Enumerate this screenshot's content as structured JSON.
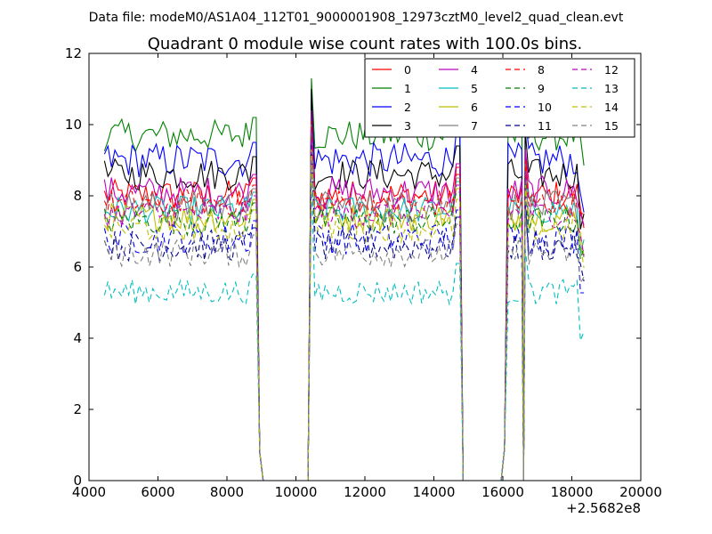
{
  "chart_data": {
    "type": "line",
    "suptitle": "Data file: modeM0/AS1A04_112T01_9000001908_12973cztM0_level2_quad_clean.evt",
    "title": "Quadrant 0 module wise count rates with 100.0s bins.",
    "xlabel": "",
    "ylabel": "",
    "x_offset_label": "+2.5682e8",
    "xlim": [
      4000,
      20000
    ],
    "ylim": [
      0,
      12
    ],
    "xticks": [
      4000,
      6000,
      8000,
      10000,
      12000,
      14000,
      16000,
      18000,
      20000
    ],
    "xtick_labels": [
      "4000",
      "6000",
      "8000",
      "10000",
      "12000",
      "14000",
      "16000",
      "18000",
      "20000"
    ],
    "yticks": [
      0,
      2,
      4,
      6,
      8,
      10,
      12
    ],
    "ytick_labels": [
      "0",
      "2",
      "4",
      "6",
      "8",
      "10",
      "12"
    ],
    "bin_seconds": 100,
    "segments": [
      {
        "start": 4450,
        "end": 8850
      },
      {
        "start": 10450,
        "end": 14750
      },
      {
        "start": 16150,
        "end": 16550
      },
      {
        "start": 16650,
        "end": 18350
      }
    ],
    "gaps": [
      {
        "from": 8850,
        "to": 10450,
        "points": [
          [
            8950,
            0.8
          ],
          [
            9050,
            0
          ],
          [
            10350,
            0
          ]
        ]
      },
      {
        "from": 14750,
        "to": 16150,
        "points": [
          [
            14850,
            0
          ],
          [
            15950,
            0
          ],
          [
            16050,
            0.9
          ]
        ]
      },
      {
        "from": 16550,
        "to": 16650,
        "points": [
          [
            16600,
            0
          ]
        ]
      }
    ],
    "series": [
      {
        "name": "0",
        "color": "#ff0000",
        "style": "solid",
        "mean": 8.0,
        "noise": 0.45,
        "peak": 10.6
      },
      {
        "name": "1",
        "color": "#008000",
        "style": "solid",
        "mean": 9.7,
        "noise": 0.45,
        "peak": 11.3
      },
      {
        "name": "2",
        "color": "#0000ff",
        "style": "solid",
        "mean": 9.0,
        "noise": 0.5,
        "peak": 10.9
      },
      {
        "name": "3",
        "color": "#000000",
        "style": "solid",
        "mean": 8.6,
        "noise": 0.45,
        "peak": 11.0
      },
      {
        "name": "4",
        "color": "#bf00bf",
        "style": "solid",
        "mean": 8.1,
        "noise": 0.45,
        "peak": 10.4
      },
      {
        "name": "5",
        "color": "#00bfbf",
        "style": "solid",
        "mean": 7.6,
        "noise": 0.4,
        "peak": 9.8
      },
      {
        "name": "6",
        "color": "#bfbf00",
        "style": "solid",
        "mean": 7.4,
        "noise": 0.4,
        "peak": 9.6
      },
      {
        "name": "7",
        "color": "#808080",
        "style": "solid",
        "mean": 7.7,
        "noise": 0.45,
        "peak": 10.0
      },
      {
        "name": "8",
        "color": "#ff0000",
        "style": "dashed",
        "mean": 7.8,
        "noise": 0.4,
        "peak": 10.1
      },
      {
        "name": "9",
        "color": "#008000",
        "style": "dashed",
        "mean": 7.3,
        "noise": 0.4,
        "peak": 9.7
      },
      {
        "name": "10",
        "color": "#0000ff",
        "style": "dashed",
        "mean": 6.8,
        "noise": 0.45,
        "peak": 9.5
      },
      {
        "name": "11",
        "color": "#00008b",
        "style": "dashed",
        "mean": 6.6,
        "noise": 0.45,
        "peak": 9.2
      },
      {
        "name": "12",
        "color": "#bf00bf",
        "style": "dashed",
        "mean": 7.5,
        "noise": 0.4,
        "peak": 9.9
      },
      {
        "name": "13",
        "color": "#00bfbf",
        "style": "dashed",
        "mean": 5.3,
        "noise": 0.35,
        "peak": 8.4
      },
      {
        "name": "14",
        "color": "#bfbf00",
        "style": "dashed",
        "mean": 7.1,
        "noise": 0.4,
        "peak": 9.3
      },
      {
        "name": "15",
        "color": "#808080",
        "style": "dashed",
        "mean": 6.4,
        "noise": 0.4,
        "peak": 9.0
      }
    ],
    "legend": {
      "position": "top-right",
      "columns": 4
    }
  }
}
